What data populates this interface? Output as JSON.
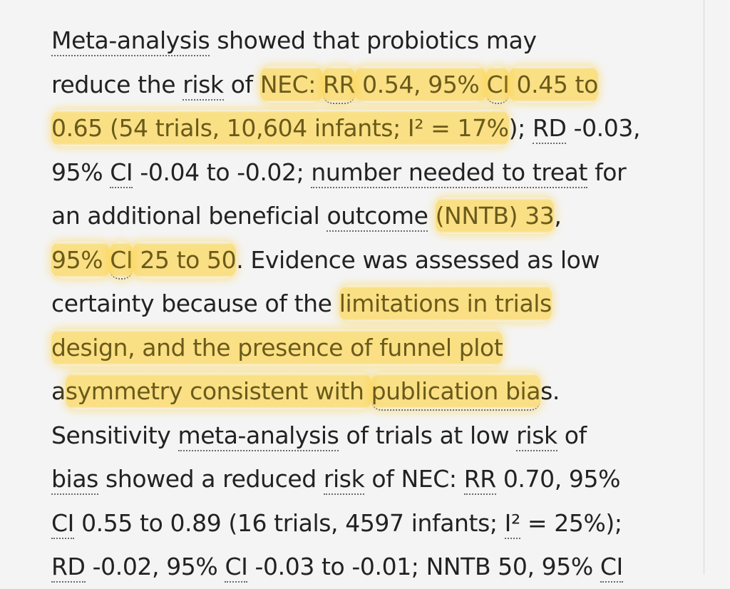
{
  "article": {
    "lines": [
      [
        {
          "text": "Meta-analysis",
          "g": true
        },
        {
          "text": " showed that probiotics may"
        }
      ],
      [
        {
          "text": "reduce the "
        },
        {
          "text": "risk",
          "g": true
        },
        {
          "text": " of "
        },
        {
          "text": "NEC: ",
          "hl": true
        },
        {
          "text": "RR",
          "hl": true,
          "g": true
        },
        {
          "text": " 0.54, 95% ",
          "hl": true
        },
        {
          "text": "CI",
          "hl": true,
          "g": true
        },
        {
          "text": " 0.45 to",
          "hl": true
        }
      ],
      [
        {
          "text": "0.65 (54 trials, 10,604 infants; I² = 17%",
          "hl": true
        },
        {
          "text": "); "
        },
        {
          "text": "RD",
          "g": true
        },
        {
          "text": " -0.03,"
        }
      ],
      [
        {
          "text": "95% "
        },
        {
          "text": "CI",
          "g": true
        },
        {
          "text": " -0.04 to -0.02; "
        },
        {
          "text": "number needed to treat",
          "g": true
        },
        {
          "text": " for"
        }
      ],
      [
        {
          "text": "an additional beneficial "
        },
        {
          "text": "outcome",
          "g": true
        },
        {
          "text": " "
        },
        {
          "text": "(NNTB) 33",
          "hl": true
        },
        {
          "text": ","
        }
      ],
      [
        {
          "text": "95% ",
          "hl": true
        },
        {
          "text": "CI",
          "hl": true,
          "g": true
        },
        {
          "text": " 25 to 50",
          "hl": true
        },
        {
          "text": ". Evidence was assessed as low"
        }
      ],
      [
        {
          "text": "certainty because of the "
        },
        {
          "text": "limitations in trials",
          "hl": true
        }
      ],
      [
        {
          "text": "design, and the presence of funnel plot",
          "hl": true
        }
      ],
      [
        {
          "text": "a"
        },
        {
          "text": "symmetry consistent with ",
          "hl": true
        },
        {
          "text": "publication bia",
          "hl": true,
          "g": true
        },
        {
          "text": "s."
        }
      ],
      [
        {
          "text": "Sensitivity "
        },
        {
          "text": "meta-analysis",
          "g": true
        },
        {
          "text": " of trials at low "
        },
        {
          "text": "risk",
          "g": true
        },
        {
          "text": " of"
        }
      ],
      [
        {
          "text": "bias",
          "g": true
        },
        {
          "text": " showed a reduced "
        },
        {
          "text": "risk",
          "g": true
        },
        {
          "text": " of NEC: "
        },
        {
          "text": "RR",
          "g": true
        },
        {
          "text": " 0.70, 95%"
        }
      ],
      [
        {
          "text": "CI",
          "g": true
        },
        {
          "text": " 0.55 to 0.89 (16 trials, 4597 infants; "
        },
        {
          "text": "I²",
          "g": true
        },
        {
          "text": " = 25%);"
        }
      ],
      [
        {
          "text": "RD",
          "g": true
        },
        {
          "text": " -0.02, 95% "
        },
        {
          "text": "CI",
          "g": true
        },
        {
          "text": " -0.03 to -0.01; NNTB 50, 95% "
        },
        {
          "text": "CI",
          "g": true
        }
      ]
    ]
  }
}
